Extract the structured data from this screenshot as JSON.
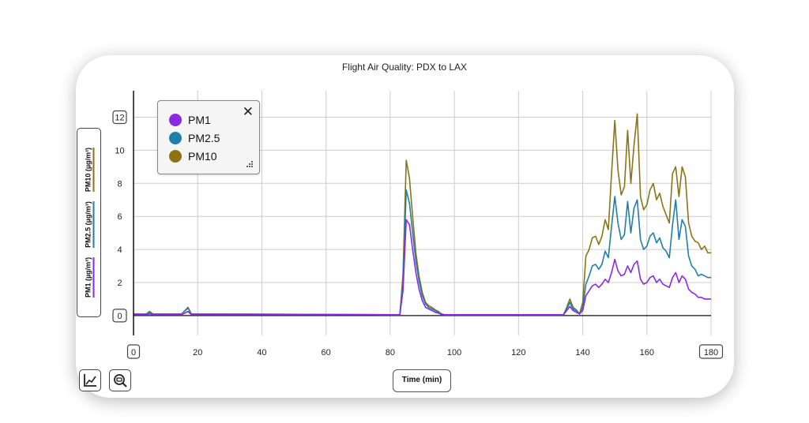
{
  "chart_data": {
    "type": "line",
    "title": "Flight Air Quality: PDX to LAX",
    "xlabel": "Time (min)",
    "ylabel": [
      "PM1 (µg/m³)",
      "PM2.5 (µg/m³)",
      "PM10 (µg/m³)"
    ],
    "xlim": [
      0,
      180
    ],
    "ylim": [
      -1.2,
      13.6
    ],
    "x_ticks": [
      "0",
      "20",
      "40",
      "60",
      "80",
      "100",
      "120",
      "140",
      "160",
      "180"
    ],
    "y_ticks": [
      "0",
      "2",
      "4",
      "6",
      "8",
      "10",
      "12"
    ],
    "grid": true,
    "legend_position": "top-left",
    "series": [
      {
        "name": "PM1",
        "color": "#8a2be2",
        "x": [
          0,
          4,
          5,
          6,
          15,
          17,
          18,
          20,
          83,
          84,
          85,
          86,
          87,
          88,
          89,
          90,
          91,
          92,
          93,
          94,
          95,
          96,
          97,
          98,
          134,
          135,
          136,
          137,
          138,
          139,
          140,
          141,
          142,
          143,
          144,
          145,
          146,
          147,
          148,
          149,
          150,
          151,
          152,
          153,
          154,
          155,
          156,
          157,
          158,
          159,
          160,
          161,
          162,
          163,
          164,
          165,
          166,
          167,
          168,
          169,
          170,
          171,
          172,
          173,
          174,
          175,
          176,
          177,
          178,
          179,
          180
        ],
        "y": [
          0.05,
          0.05,
          0.1,
          0.05,
          0.05,
          0.25,
          0.05,
          0.05,
          0.05,
          1.5,
          5.8,
          5.5,
          4.0,
          2.6,
          1.6,
          0.9,
          0.5,
          0.4,
          0.3,
          0.2,
          0.15,
          0.05,
          0.05,
          0.05,
          0.05,
          0.3,
          0.55,
          0.3,
          0.2,
          0.1,
          0.3,
          1.2,
          1.5,
          1.8,
          1.9,
          1.7,
          1.9,
          2.2,
          2.0,
          2.6,
          3.4,
          2.7,
          2.4,
          2.5,
          3.0,
          2.6,
          3.1,
          3.3,
          2.2,
          1.9,
          2.0,
          2.3,
          2.4,
          2.0,
          2.2,
          1.9,
          1.8,
          1.7,
          2.3,
          2.6,
          2.0,
          2.4,
          2.2,
          1.6,
          1.4,
          1.3,
          1.1,
          1.1,
          1.0,
          1.0,
          1.0
        ]
      },
      {
        "name": "PM2.5",
        "color": "#1f7fa8",
        "x": [
          0,
          4,
          5,
          6,
          15,
          17,
          18,
          20,
          83,
          84,
          85,
          86,
          87,
          88,
          89,
          90,
          91,
          92,
          93,
          94,
          95,
          96,
          97,
          98,
          134,
          135,
          136,
          137,
          138,
          139,
          140,
          141,
          142,
          143,
          144,
          145,
          146,
          147,
          148,
          149,
          150,
          151,
          152,
          153,
          154,
          155,
          156,
          157,
          158,
          159,
          160,
          161,
          162,
          163,
          164,
          165,
          166,
          167,
          168,
          169,
          170,
          171,
          172,
          173,
          174,
          175,
          176,
          177,
          178,
          179,
          180
        ],
        "y": [
          0.1,
          0.1,
          0.2,
          0.1,
          0.1,
          0.45,
          0.1,
          0.1,
          0.05,
          2.0,
          7.6,
          6.8,
          5.0,
          3.3,
          2.1,
          1.2,
          0.7,
          0.5,
          0.4,
          0.3,
          0.2,
          0.1,
          0.05,
          0.05,
          0.05,
          0.4,
          0.8,
          0.4,
          0.3,
          0.1,
          0.5,
          1.9,
          2.4,
          3.0,
          3.1,
          2.8,
          3.1,
          3.9,
          3.5,
          5.4,
          7.2,
          5.6,
          4.6,
          4.9,
          6.9,
          5.0,
          6.5,
          7.0,
          4.6,
          4.0,
          4.2,
          4.8,
          5.0,
          4.4,
          4.7,
          4.1,
          3.9,
          3.5,
          5.5,
          7.0,
          4.6,
          5.8,
          5.4,
          3.6,
          3.0,
          2.8,
          2.4,
          2.5,
          2.4,
          2.3,
          2.3
        ]
      },
      {
        "name": "PM10",
        "color": "#8b7415",
        "x": [
          0,
          4,
          5,
          6,
          15,
          17,
          18,
          20,
          83,
          84,
          85,
          86,
          87,
          88,
          89,
          90,
          91,
          92,
          93,
          94,
          95,
          96,
          97,
          98,
          134,
          135,
          136,
          137,
          138,
          139,
          140,
          141,
          142,
          143,
          144,
          145,
          146,
          147,
          148,
          149,
          150,
          151,
          152,
          153,
          154,
          155,
          156,
          157,
          158,
          159,
          160,
          161,
          162,
          163,
          164,
          165,
          166,
          167,
          168,
          169,
          170,
          171,
          172,
          173,
          174,
          175,
          176,
          177,
          178,
          179,
          180
        ],
        "y": [
          0.1,
          0.1,
          0.25,
          0.1,
          0.1,
          0.5,
          0.1,
          0.1,
          0.05,
          2.5,
          9.4,
          8.3,
          6.0,
          3.8,
          2.4,
          1.4,
          0.8,
          0.6,
          0.5,
          0.35,
          0.25,
          0.1,
          0.05,
          0.05,
          0.05,
          0.5,
          1.0,
          0.5,
          0.35,
          0.1,
          0.8,
          3.6,
          4.0,
          4.7,
          4.8,
          4.3,
          4.8,
          5.8,
          5.2,
          8.6,
          11.8,
          8.8,
          7.3,
          7.8,
          11.2,
          8.0,
          10.3,
          12.2,
          7.2,
          6.4,
          6.7,
          7.6,
          8.0,
          7.0,
          7.4,
          6.6,
          6.1,
          5.6,
          8.6,
          9.0,
          7.2,
          9.0,
          8.4,
          5.6,
          4.8,
          4.5,
          4.4,
          4.0,
          4.2,
          3.8,
          3.8
        ]
      }
    ]
  },
  "icons": {
    "legend_close": "close-icon",
    "legend_resize": "resize-grip-icon",
    "axes_tool": "axis-scale-icon",
    "zoom_tool": "zoom-out-icon"
  }
}
